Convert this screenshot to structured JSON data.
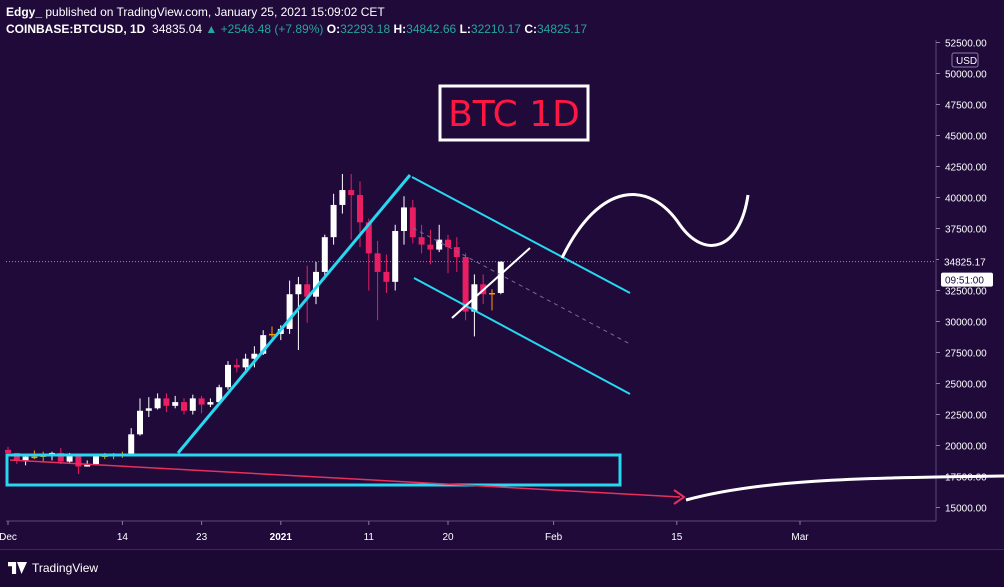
{
  "header": {
    "author": "Edgy_",
    "published": "published on TradingView.com, January 25, 2021 15:09:02 CET",
    "symbol": "COINBASE:BTCUSD, 1D",
    "price": "34835.04",
    "change": "+2546.48 (+7.89%)",
    "o_label": "O:",
    "o_value": "32293.18",
    "h_label": "H:",
    "h_value": "34842.66",
    "l_label": "L:",
    "l_value": "32210.17",
    "c_label": "C:",
    "c_value": "34825.17"
  },
  "footer": {
    "brand": "TradingView"
  },
  "colors": {
    "background": "#1f0a3a",
    "bull": "#ffffff",
    "bear": "#e91e63",
    "neutral": "#ff9800",
    "channel": "#26d8f0",
    "arrow": "#e8305a",
    "annotation": "#ff1744"
  },
  "chart_data": {
    "type": "candlestick",
    "title": "BTC 1D",
    "currency": "USD",
    "ylim": [
      14500,
      52500
    ],
    "y_ticks": [
      "52500.00",
      "50000.00",
      "47500.00",
      "45000.00",
      "42500.00",
      "40000.00",
      "37500.00",
      "35000.00",
      "32500.00",
      "30000.00",
      "27500.00",
      "25000.00",
      "22500.00",
      "20000.00",
      "17500.00",
      "15000.00"
    ],
    "x_ticks": [
      {
        "label": "Dec",
        "day": 0
      },
      {
        "label": "14",
        "day": 13
      },
      {
        "label": "23",
        "day": 22
      },
      {
        "label": "2021",
        "day": 31
      },
      {
        "label": "11",
        "day": 41
      },
      {
        "label": "20",
        "day": 50
      },
      {
        "label": "Feb",
        "day": 62
      },
      {
        "label": "15",
        "day": 76
      },
      {
        "label": "Mar",
        "day": 90
      }
    ],
    "last_price": "34825.17",
    "countdown": "09:51:00",
    "candles": [
      [
        19650,
        19400,
        19900,
        18200
      ],
      [
        19400,
        18800,
        19400,
        18500
      ],
      [
        18800,
        19100,
        19200,
        18400
      ],
      [
        19100,
        19100,
        19600,
        18900
      ],
      [
        19100,
        19200,
        19500,
        18700
      ],
      [
        19200,
        19400,
        19500,
        18800
      ],
      [
        19400,
        18700,
        19800,
        18500
      ],
      [
        18700,
        19200,
        19400,
        18600
      ],
      [
        19200,
        18300,
        19250,
        17700
      ],
      [
        18300,
        18500,
        18800,
        18300
      ],
      [
        18500,
        19200,
        19300,
        18400
      ],
      [
        19200,
        19200,
        19400,
        18900
      ],
      [
        19200,
        19300,
        19400,
        18900
      ],
      [
        19300,
        19300,
        19500,
        19000
      ],
      [
        19300,
        20900,
        21400,
        19200
      ],
      [
        20900,
        22800,
        23800,
        20800
      ],
      [
        22800,
        23000,
        23900,
        22300
      ],
      [
        23000,
        23800,
        24200,
        22900
      ],
      [
        23800,
        23200,
        24200,
        22700
      ],
      [
        23200,
        23500,
        24000,
        23000
      ],
      [
        23500,
        22800,
        23800,
        22500
      ],
      [
        22800,
        23800,
        24100,
        22500
      ],
      [
        23800,
        23300,
        24000,
        22600
      ],
      [
        23300,
        23500,
        23800,
        23100
      ],
      [
        23500,
        24700,
        24900,
        23400
      ],
      [
        24700,
        26500,
        26800,
        24500
      ],
      [
        26500,
        26300,
        27000,
        25900
      ],
      [
        26300,
        27000,
        27400,
        26000
      ],
      [
        27000,
        27400,
        28000,
        26300
      ],
      [
        27400,
        28900,
        29300,
        27300
      ],
      [
        28900,
        29000,
        29600,
        28700
      ],
      [
        29000,
        29400,
        29700,
        28500
      ],
      [
        29400,
        32200,
        33300,
        29000
      ],
      [
        32200,
        33000,
        33600,
        27700
      ],
      [
        33000,
        32000,
        34500,
        29900
      ],
      [
        32000,
        34000,
        34800,
        31400
      ],
      [
        34000,
        36800,
        37000,
        33400
      ],
      [
        36800,
        39400,
        40300,
        36200
      ],
      [
        39400,
        40600,
        41900,
        38700
      ],
      [
        40600,
        40200,
        41900,
        36600
      ],
      [
        40200,
        38000,
        41300,
        36000
      ],
      [
        38000,
        35500,
        38300,
        32500
      ],
      [
        35500,
        34000,
        36500,
        30100
      ],
      [
        34000,
        33200,
        35400,
        32300
      ],
      [
        33200,
        37300,
        37800,
        32500
      ],
      [
        37300,
        39200,
        40100,
        36200
      ],
      [
        39200,
        36800,
        39800,
        36300
      ],
      [
        36800,
        36200,
        37800,
        35500
      ],
      [
        36200,
        35800,
        37400,
        34600
      ],
      [
        35800,
        36600,
        37800,
        35600
      ],
      [
        36600,
        36000,
        37000,
        33900
      ],
      [
        36000,
        35200,
        36800,
        34000
      ],
      [
        35200,
        30800,
        35500,
        30100
      ],
      [
        30800,
        33000,
        33800,
        28800
      ],
      [
        33000,
        32200,
        33800,
        31400
      ],
      [
        32200,
        32300,
        32600,
        30900
      ],
      [
        32300,
        34825,
        34850,
        32200
      ]
    ]
  }
}
